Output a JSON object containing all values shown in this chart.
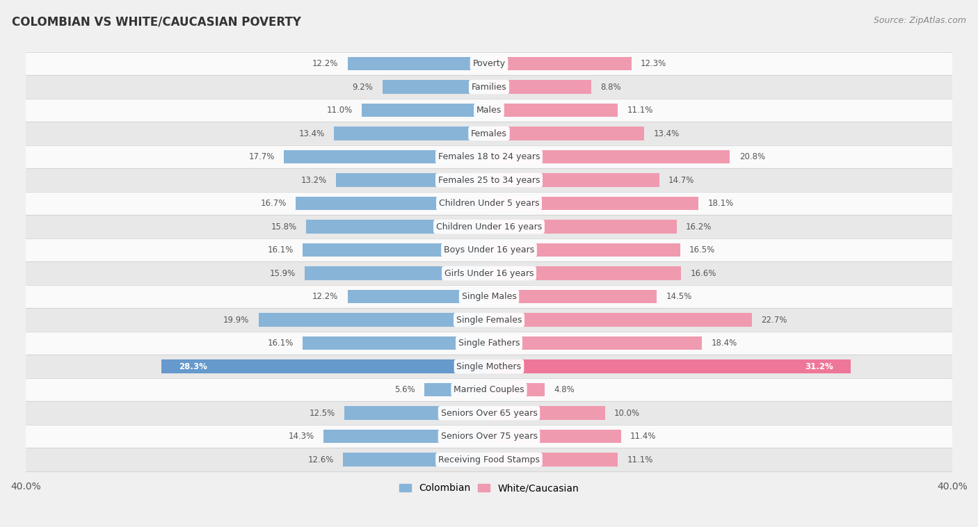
{
  "title": "COLOMBIAN VS WHITE/CAUCASIAN POVERTY",
  "source": "Source: ZipAtlas.com",
  "categories": [
    "Poverty",
    "Families",
    "Males",
    "Females",
    "Females 18 to 24 years",
    "Females 25 to 34 years",
    "Children Under 5 years",
    "Children Under 16 years",
    "Boys Under 16 years",
    "Girls Under 16 years",
    "Single Males",
    "Single Females",
    "Single Fathers",
    "Single Mothers",
    "Married Couples",
    "Seniors Over 65 years",
    "Seniors Over 75 years",
    "Receiving Food Stamps"
  ],
  "colombian": [
    12.2,
    9.2,
    11.0,
    13.4,
    17.7,
    13.2,
    16.7,
    15.8,
    16.1,
    15.9,
    12.2,
    19.9,
    16.1,
    28.3,
    5.6,
    12.5,
    14.3,
    12.6
  ],
  "white": [
    12.3,
    8.8,
    11.1,
    13.4,
    20.8,
    14.7,
    18.1,
    16.2,
    16.5,
    16.6,
    14.5,
    22.7,
    18.4,
    31.2,
    4.8,
    10.0,
    11.4,
    11.1
  ],
  "colombian_color": "#88b4d8",
  "white_color": "#f09ab0",
  "single_mothers_colombian_color": "#6699cc",
  "single_mothers_white_color": "#ee7799",
  "xlim": 40.0,
  "bar_height": 0.58,
  "bg_color": "#f0f0f0",
  "row_color_light": "#fafafa",
  "row_color_dark": "#e8e8e8",
  "label_fontsize": 9.0,
  "value_fontsize": 8.5,
  "title_fontsize": 12,
  "source_fontsize": 9
}
